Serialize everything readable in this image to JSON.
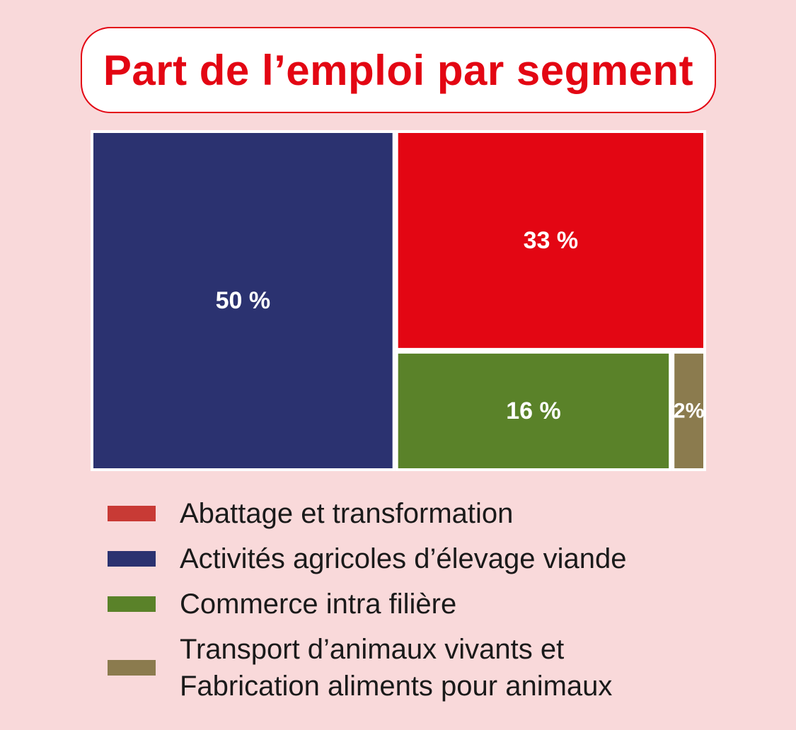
{
  "title": "Part de l’emploi par segment",
  "chart_data": {
    "type": "treemap",
    "title": "Part de l’emploi par segment",
    "unit": "%",
    "series": [
      {
        "name": "Activités agricoles d’élevage viande",
        "value": 50,
        "label": "50 %",
        "color": "#2b3270"
      },
      {
        "name": "Abattage et transformation",
        "value": 33,
        "label": "33 %",
        "color": "#e30613"
      },
      {
        "name": "Commerce intra filière",
        "value": 16,
        "label": "16 %",
        "color": "#5a8229"
      },
      {
        "name": "Transport d’animaux vivants et Fabrication aliments pour animaux",
        "value": 2,
        "label": "2%",
        "color": "#8b7b4e"
      }
    ]
  },
  "legend": {
    "items": [
      {
        "label": "Abattage et transformation",
        "color": "#c83a35"
      },
      {
        "label": "Activités agricoles d’élevage viande",
        "color": "#2b3270"
      },
      {
        "label": "Commerce intra filière",
        "color": "#5a8229"
      },
      {
        "label": "Transport d’animaux vivants et\nFabrication aliments pour animaux",
        "color": "#8b7b4e"
      }
    ]
  }
}
